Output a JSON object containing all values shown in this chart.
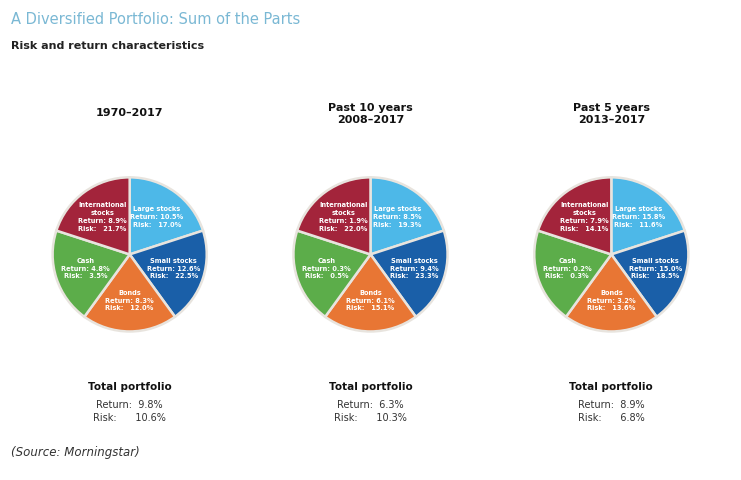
{
  "title": "A Diversified Portfolio: Sum of the Parts",
  "subtitle": "Risk and return characteristics",
  "source": "(Source: Morningstar)",
  "panel_bg": "#e8e4de",
  "fig_bg": "#ffffff",
  "charts": [
    {
      "title_line1": "1970–2017",
      "title_line2": "",
      "segments": [
        {
          "label": "Large stocks",
          "ret": "10.5%",
          "risk": "17.0%",
          "size": 20,
          "color": "#4db8e8"
        },
        {
          "label": "Small stocks",
          "ret": "12.6%",
          "risk": "22.5%",
          "size": 20,
          "color": "#1a5fa8"
        },
        {
          "label": "Bonds",
          "ret": "8.3%",
          "risk": "12.0%",
          "size": 20,
          "color": "#e87634"
        },
        {
          "label": "Cash",
          "ret": "4.8%",
          "risk": "3.5%",
          "size": 20,
          "color": "#5cad4a"
        },
        {
          "label": "International\nstocks",
          "ret": "8.9%",
          "risk": "21.7%",
          "size": 20,
          "color": "#a3243b"
        }
      ],
      "total_ret": "9.8%",
      "total_risk": "10.6%"
    },
    {
      "title_line1": "Past 10 years",
      "title_line2": "2008–2017",
      "segments": [
        {
          "label": "Large stocks",
          "ret": "8.5%",
          "risk": "19.3%",
          "size": 20,
          "color": "#4db8e8"
        },
        {
          "label": "Small stocks",
          "ret": "9.4%",
          "risk": "23.3%",
          "size": 20,
          "color": "#1a5fa8"
        },
        {
          "label": "Bonds",
          "ret": "6.1%",
          "risk": "15.1%",
          "size": 20,
          "color": "#e87634"
        },
        {
          "label": "Cash",
          "ret": "0.3%",
          "risk": "0.5%",
          "size": 20,
          "color": "#5cad4a"
        },
        {
          "label": "International\nstocks",
          "ret": "1.9%",
          "risk": "22.0%",
          "size": 20,
          "color": "#a3243b"
        }
      ],
      "total_ret": "6.3%",
      "total_risk": "10.3%"
    },
    {
      "title_line1": "Past 5 years",
      "title_line2": "2013–2017",
      "segments": [
        {
          "label": "Large stocks",
          "ret": "15.8%",
          "risk": "11.6%",
          "size": 20,
          "color": "#4db8e8"
        },
        {
          "label": "Small stocks",
          "ret": "15.0%",
          "risk": "18.5%",
          "size": 20,
          "color": "#1a5fa8"
        },
        {
          "label": "Bonds",
          "ret": "3.2%",
          "risk": "13.6%",
          "size": 20,
          "color": "#e87634"
        },
        {
          "label": "Cash",
          "ret": "0.2%",
          "risk": "0.3%",
          "size": 20,
          "color": "#5cad4a"
        },
        {
          "label": "International\nstocks",
          "ret": "7.9%",
          "risk": "14.1%",
          "size": 20,
          "color": "#a3243b"
        }
      ],
      "total_ret": "8.9%",
      "total_risk": "6.8%"
    }
  ]
}
